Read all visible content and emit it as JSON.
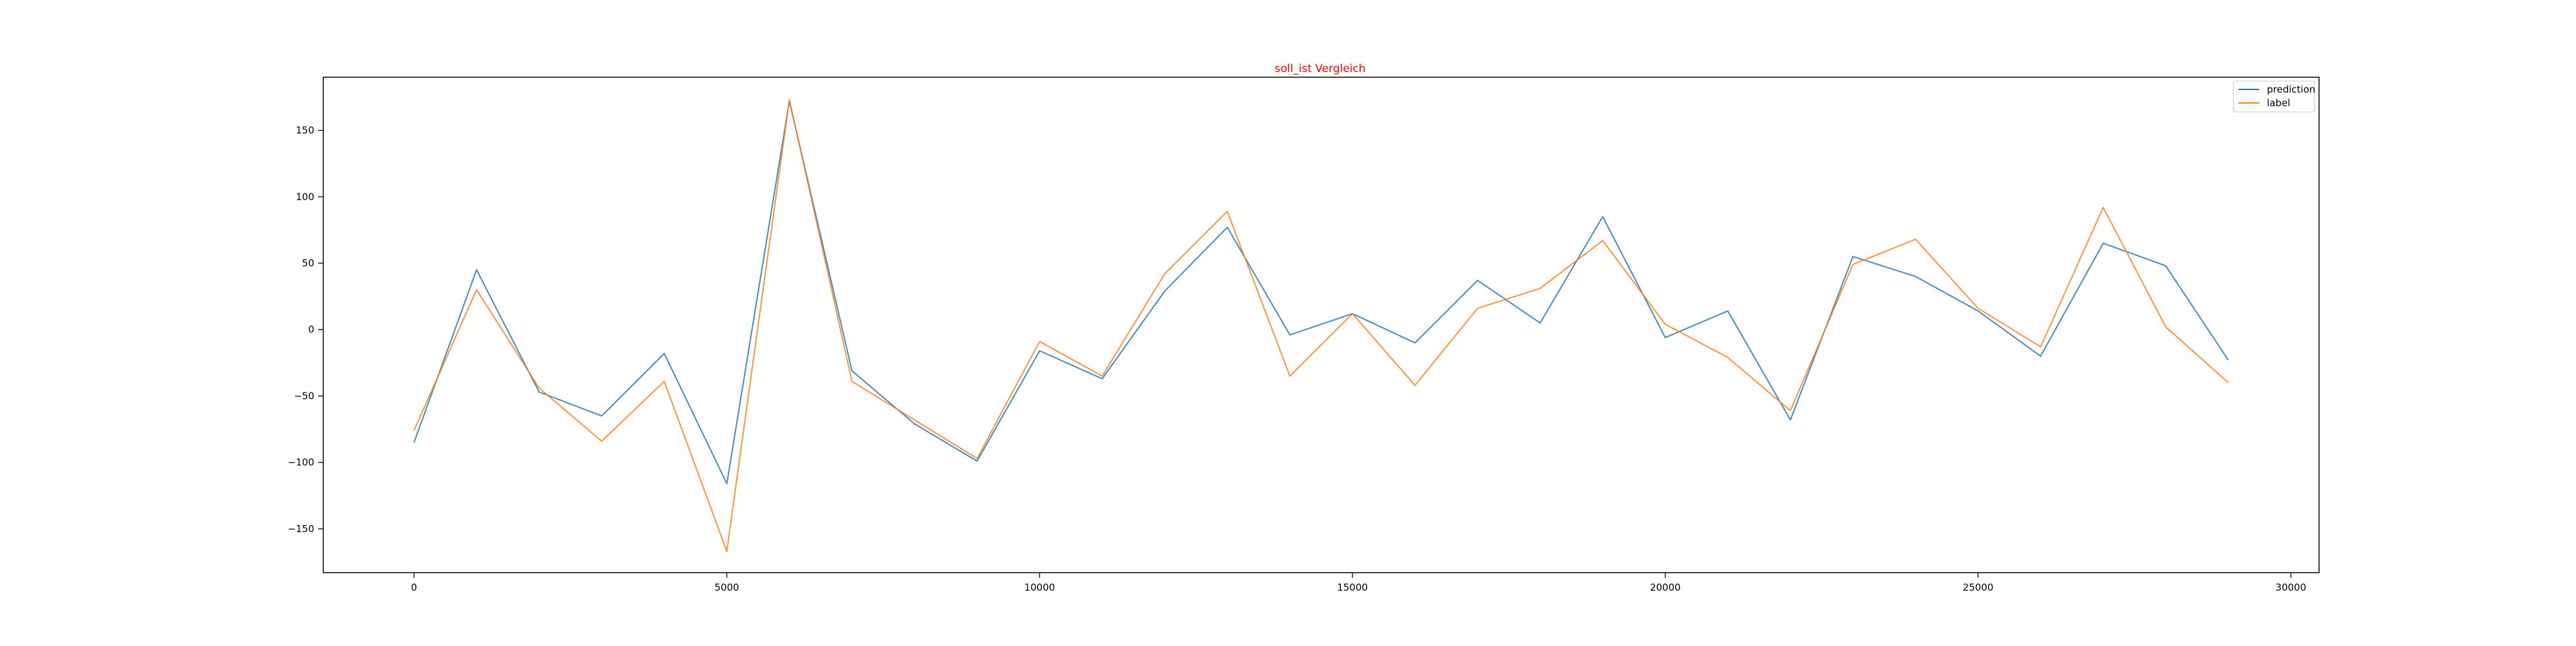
{
  "chart_data": {
    "type": "line",
    "title": "soll_ist Vergleich",
    "title_color": "#ff0000",
    "xlabel": "",
    "ylabel": "",
    "xlim": [
      -1450,
      30450
    ],
    "ylim": [
      -183,
      190
    ],
    "xticks": [
      0,
      5000,
      10000,
      15000,
      20000,
      25000,
      30000
    ],
    "yticks": [
      -150,
      -100,
      -50,
      0,
      50,
      100,
      150
    ],
    "grid": false,
    "legend_position": "top-right",
    "x": [
      0,
      1000,
      2000,
      3000,
      4000,
      5000,
      6000,
      7000,
      8000,
      9000,
      10000,
      11000,
      12000,
      13000,
      14000,
      15000,
      16000,
      17000,
      18000,
      19000,
      20000,
      21000,
      22000,
      23000,
      24000,
      25000,
      26000,
      27000,
      28000,
      29000
    ],
    "series": [
      {
        "name": "prediction",
        "color": "#1f77b4",
        "values": [
          -85,
          45,
          -47,
          -65,
          -18,
          -116,
          172,
          -31,
          -71,
          -99,
          -16,
          -37,
          29,
          77,
          -4,
          12,
          -10,
          37,
          5,
          85,
          -6,
          14,
          -68,
          55,
          40,
          14,
          -20,
          65,
          48,
          -23
        ]
      },
      {
        "name": "label",
        "color": "#ff7f0e",
        "values": [
          -76,
          30,
          -44,
          -84,
          -39,
          -167,
          173,
          -39,
          -68,
          -97,
          -9,
          -35,
          42,
          89,
          -35,
          12,
          -42,
          16,
          31,
          67,
          4,
          -21,
          -61,
          49,
          68,
          16,
          -13,
          92,
          2,
          -40
        ]
      }
    ]
  }
}
